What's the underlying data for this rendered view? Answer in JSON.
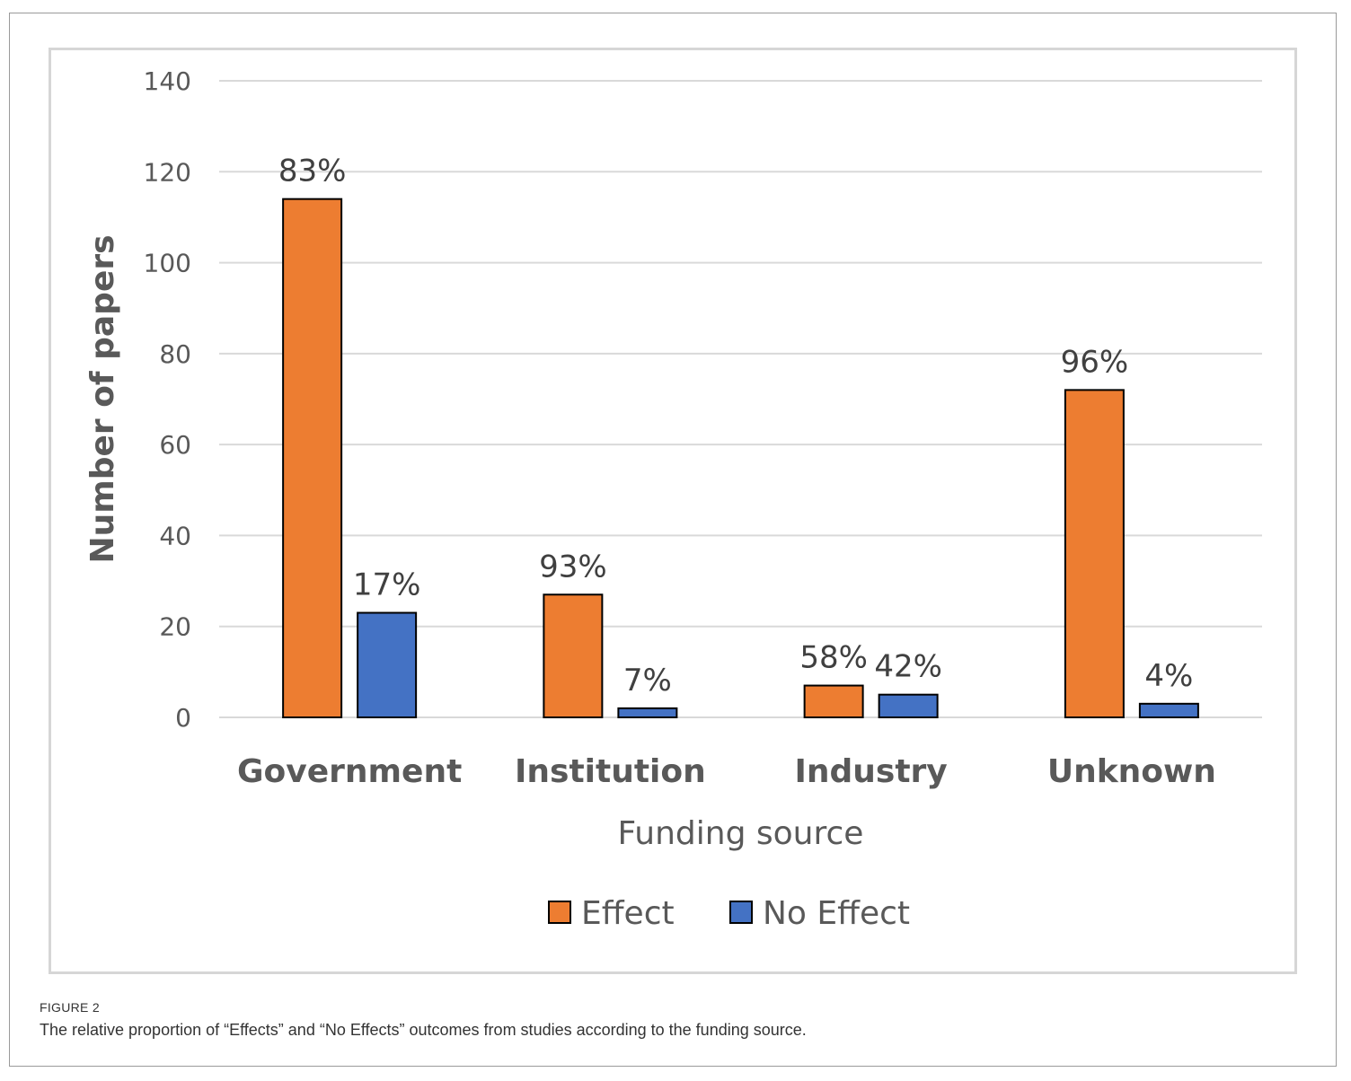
{
  "figure": {
    "label": "FIGURE 2",
    "caption": "The relative proportion of “Effects” and “No Effects” outcomes from studies according to the funding source."
  },
  "chart_data": {
    "type": "bar",
    "title": "",
    "xlabel": "Funding source",
    "ylabel": "Number of papers",
    "ylim": [
      0,
      140
    ],
    "yticks": [
      0,
      20,
      40,
      60,
      80,
      100,
      120,
      140
    ],
    "grid": true,
    "legend_position": "bottom",
    "categories": [
      "Government",
      "Institution",
      "Industry",
      "Unknown"
    ],
    "series": [
      {
        "name": "Effect",
        "color": "#ed7d31",
        "values": [
          114,
          27,
          7,
          72
        ],
        "labels": [
          "83%",
          "93%",
          "58%",
          "96%"
        ]
      },
      {
        "name": "No Effect",
        "color": "#4472c4",
        "values": [
          23,
          2,
          5,
          3
        ],
        "labels": [
          "17%",
          "7%",
          "42%",
          "4%"
        ]
      }
    ]
  }
}
